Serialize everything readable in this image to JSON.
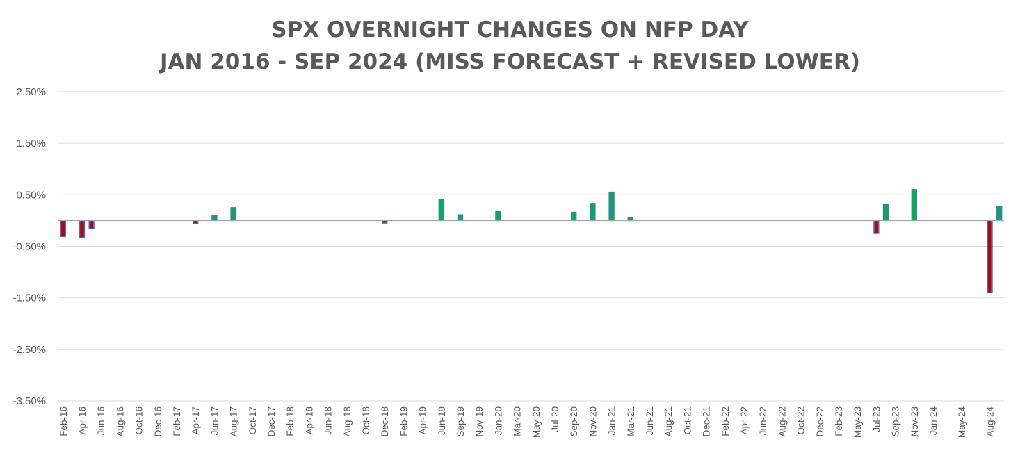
{
  "chart_data": {
    "type": "bar",
    "title": "SPX OVERNIGHT CHANGES ON NFP DAY",
    "subtitle": "JAN 2016 - SEP 2024 (MISS FORECAST + REVISED LOWER)",
    "xlabel": "",
    "ylabel": "",
    "ylim": [
      -3.5,
      2.5
    ],
    "y_ticks": [
      "2.50%",
      "1.50%",
      "0.50%",
      "-0.50%",
      "-1.50%",
      "-2.50%",
      "-3.50%"
    ],
    "y_tick_values": [
      2.5,
      1.5,
      0.5,
      -0.5,
      -1.5,
      -2.5,
      -3.5
    ],
    "grid": true,
    "legend": "none",
    "colors": {
      "positive": "#00b050",
      "negative": "#c00000",
      "edge": "#4472c4",
      "grid": "#d9d9d9",
      "axis_text": "#595959"
    },
    "categories": [
      "Feb-16",
      "Mar-16",
      "Apr-16",
      "May-16",
      "Jun-16",
      "Jul-16",
      "Aug-16",
      "Sep-16",
      "Oct-16",
      "Nov-16",
      "Dec-16",
      "Jan-17",
      "Feb-17",
      "Mar-17",
      "Apr-17",
      "May-17",
      "Jun-17",
      "Jul-17",
      "Aug-17",
      "Sep-17",
      "Oct-17",
      "Nov-17",
      "Dec-17",
      "Jan-18",
      "Feb-18",
      "Mar-18",
      "Apr-18",
      "May-18",
      "Jun-18",
      "Jul-18",
      "Aug-18",
      "Sep-18",
      "Oct-18",
      "Nov-18",
      "Dec-18",
      "Jan-19",
      "Feb-19",
      "Mar-19",
      "Apr-19",
      "May-19",
      "Jun-19",
      "Jul-19",
      "Sep-19",
      "Oct-19",
      "Nov-19",
      "Dec-19",
      "Jan-20",
      "Feb-20",
      "Mar-20",
      "Apr-20",
      "May-20",
      "Jun-20",
      "Jul-20",
      "Aug-20",
      "Sep-20",
      "Oct-20",
      "Nov-20",
      "Dec-20",
      "Jan-21",
      "Feb-21",
      "Mar-21",
      "Apr-21",
      "Jun-21",
      "Jul-21",
      "Aug-21",
      "Sep-21",
      "Oct-21",
      "Nov-21",
      "Dec-21",
      "Jan-22",
      "Feb-22",
      "Mar-22",
      "Apr-22",
      "May-22",
      "Jun-22",
      "Jul-22",
      "Aug-22",
      "Sep-22",
      "Oct-22",
      "Nov-22",
      "Dec-22",
      "Jan-23",
      "Feb-23",
      "Mar-23",
      "May-23",
      "Jun-23",
      "Jul-23",
      "Aug-23",
      "Sep-23",
      "Oct-23",
      "Nov-23",
      "Dec-23",
      "Jan-24",
      "Feb-24",
      "Mar-24",
      "May-24",
      "Jun-24",
      "Jul-24",
      "Aug-24",
      "Sep-24"
    ],
    "tick_labels": [
      "Feb-16",
      "Apr-16",
      "Jun-16",
      "Aug-16",
      "Oct-16",
      "Dec-16",
      "Feb-17",
      "Apr-17",
      "Jun-17",
      "Aug-17",
      "Oct-17",
      "Dec-17",
      "Feb-18",
      "Apr-18",
      "Jun-18",
      "Aug-18",
      "Oct-18",
      "Dec-18",
      "Feb-19",
      "Apr-19",
      "Jun-19",
      "Sep-19",
      "Nov-19",
      "Jan-20",
      "Mar-20",
      "May-20",
      "Jul-20",
      "Sep-20",
      "Nov-20",
      "Jan-21",
      "Mar-21",
      "Jun-21",
      "Aug-21",
      "Oct-21",
      "Dec-21",
      "Feb-22",
      "Apr-22",
      "Jun-22",
      "Aug-22",
      "Oct-22",
      "Dec-22",
      "Feb-23",
      "May-23",
      "Jul-23",
      "Sep-23",
      "Nov-23",
      "Jan-24",
      "May-24",
      "Aug-24"
    ],
    "values": [
      -0.31,
      0,
      -0.33,
      -0.16,
      0,
      0,
      0,
      0,
      0,
      0,
      0,
      0,
      0,
      0,
      -0.06,
      0,
      0.09,
      0,
      0.25,
      0,
      0,
      0,
      0,
      0,
      0,
      0,
      0,
      0,
      0,
      0,
      0,
      0,
      0,
      0,
      -0.05,
      0,
      0,
      0,
      0,
      0,
      0.41,
      0,
      0.11,
      0,
      0,
      0,
      0.18,
      0,
      0,
      0,
      0,
      0,
      0,
      0,
      0.16,
      0,
      0.33,
      0,
      0.55,
      0,
      0.06,
      0,
      0,
      0,
      0,
      0,
      0,
      0,
      0,
      0,
      0,
      0,
      0,
      0,
      0,
      0,
      0,
      0,
      0,
      0,
      0,
      0,
      0,
      0,
      0,
      0,
      -0.25,
      0.32,
      0,
      0,
      0.6,
      0,
      0,
      0,
      0,
      0,
      0,
      0,
      -1.4,
      0.28
    ]
  }
}
